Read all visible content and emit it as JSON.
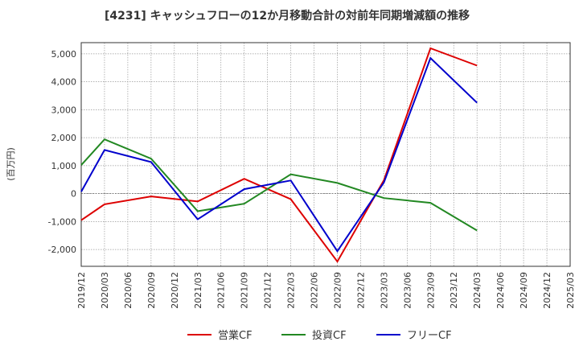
{
  "chart_data": {
    "type": "line",
    "title": "[4231]  キャッシュフローの12か月移動合計の対前年同期増減額の推移",
    "ylabel": "(百万円)",
    "xlabel": "",
    "ylim": [
      -2600,
      5400
    ],
    "y_ticks": [
      5000,
      4000,
      3000,
      2000,
      1000,
      0,
      -1000,
      -2000
    ],
    "y_tick_labels": [
      "5,000",
      "4,000",
      "3,000",
      "2,000",
      "1,000",
      "0",
      "-1,000",
      "-2,000"
    ],
    "categories": [
      "2019/12",
      "2020/03",
      "2020/06",
      "2020/09",
      "2020/12",
      "2021/03",
      "2021/06",
      "2021/09",
      "2021/12",
      "2022/03",
      "2022/06",
      "2022/09",
      "2022/12",
      "2023/03",
      "2023/06",
      "2023/09",
      "2023/12",
      "2024/03",
      "2024/06",
      "2024/09",
      "2024/12",
      "2025/03"
    ],
    "grid": true,
    "series": [
      {
        "name": "営業CF",
        "color": "#dd0000",
        "values": [
          -950,
          -380,
          null,
          -100,
          null,
          -280,
          null,
          530,
          null,
          -200,
          null,
          -2430,
          null,
          480,
          null,
          5200,
          null,
          4580,
          null,
          null,
          null,
          null
        ]
      },
      {
        "name": "投資CF",
        "color": "#228822",
        "values": [
          1020,
          1940,
          null,
          1250,
          null,
          -630,
          null,
          -360,
          null,
          690,
          null,
          380,
          null,
          -160,
          null,
          -330,
          null,
          -1320,
          null,
          null,
          null,
          null
        ]
      },
      {
        "name": "フリーCF",
        "color": "#0000cc",
        "values": [
          70,
          1560,
          null,
          1130,
          null,
          -920,
          null,
          160,
          null,
          470,
          null,
          -2060,
          null,
          400,
          null,
          4850,
          null,
          3250,
          null,
          null,
          null,
          null
        ]
      }
    ],
    "legend": {
      "position": "bottom",
      "items": [
        "営業CF",
        "投資CF",
        "フリーCF"
      ]
    }
  }
}
